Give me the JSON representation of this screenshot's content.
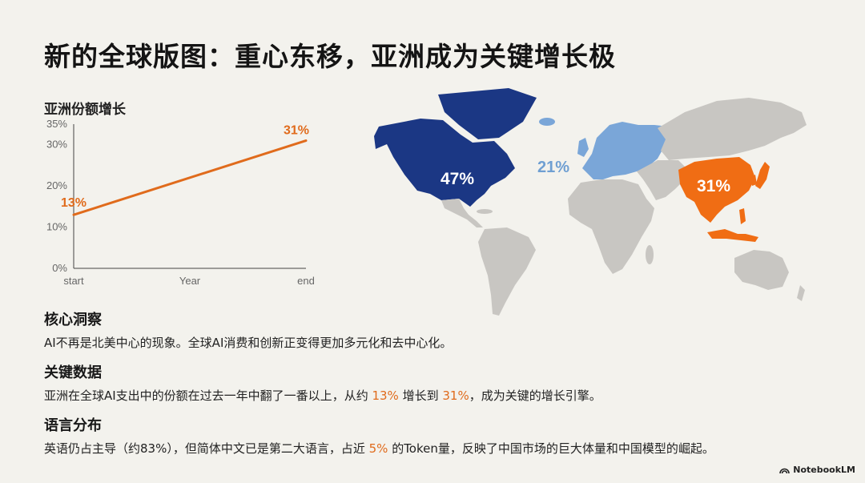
{
  "page": {
    "title": "新的全球版图：重心东移，亚洲成为关键增长极"
  },
  "chart_data": [
    {
      "type": "line",
      "title": "亚洲份额增长",
      "xlabel": "Year",
      "x": [
        "start",
        "end"
      ],
      "series": [
        {
          "values": [
            13,
            31
          ]
        }
      ],
      "data_labels": [
        "13%",
        "31%"
      ],
      "ylim": [
        0,
        35
      ],
      "yticks": [
        0,
        10,
        20,
        30,
        35
      ],
      "ytick_labels": [
        "0%",
        "10%",
        "20%",
        "30%",
        "35%"
      ],
      "xtick_labels": [
        "start",
        "",
        "end"
      ],
      "grid": false,
      "colors": {
        "line": "#e06b1c",
        "axis": "#444444",
        "tick_text": "#666666"
      }
    },
    {
      "type": "map",
      "regions": [
        {
          "region": "North America",
          "value": 47,
          "label": "47%",
          "color": "#1b3784"
        },
        {
          "region": "Europe",
          "value": 21,
          "label": "21%",
          "color": "#7aa6d8"
        },
        {
          "region": "Asia",
          "value": 31,
          "label": "31%",
          "color": "#f06d14"
        }
      ],
      "other_color": "#c8c6c2"
    }
  ],
  "sections": [
    {
      "heading": "核心洞察",
      "text": "AI不再是北美中心的现象。全球AI消费和创新正变得更加多元化和去中心化。"
    },
    {
      "heading": "关键数据",
      "text_before": "亚洲在全球AI支出中的份额在过去一年中翻了一番以上，从约 ",
      "hl1": "13%",
      "text_mid": " 增长到 ",
      "hl2": "31%",
      "text_after": "，成为关键的增长引擎。"
    },
    {
      "heading": "语言分布",
      "text_before": "英语仍占主导（约83%），但简体中文已是第二大语言，占近 ",
      "hl1": "5%",
      "text_after": " 的Token量，反映了中国市场的巨大体量和中国模型的崛起。"
    }
  ],
  "branding": {
    "label": "NotebookLM",
    "icon": "notebooklm-logo-icon"
  }
}
